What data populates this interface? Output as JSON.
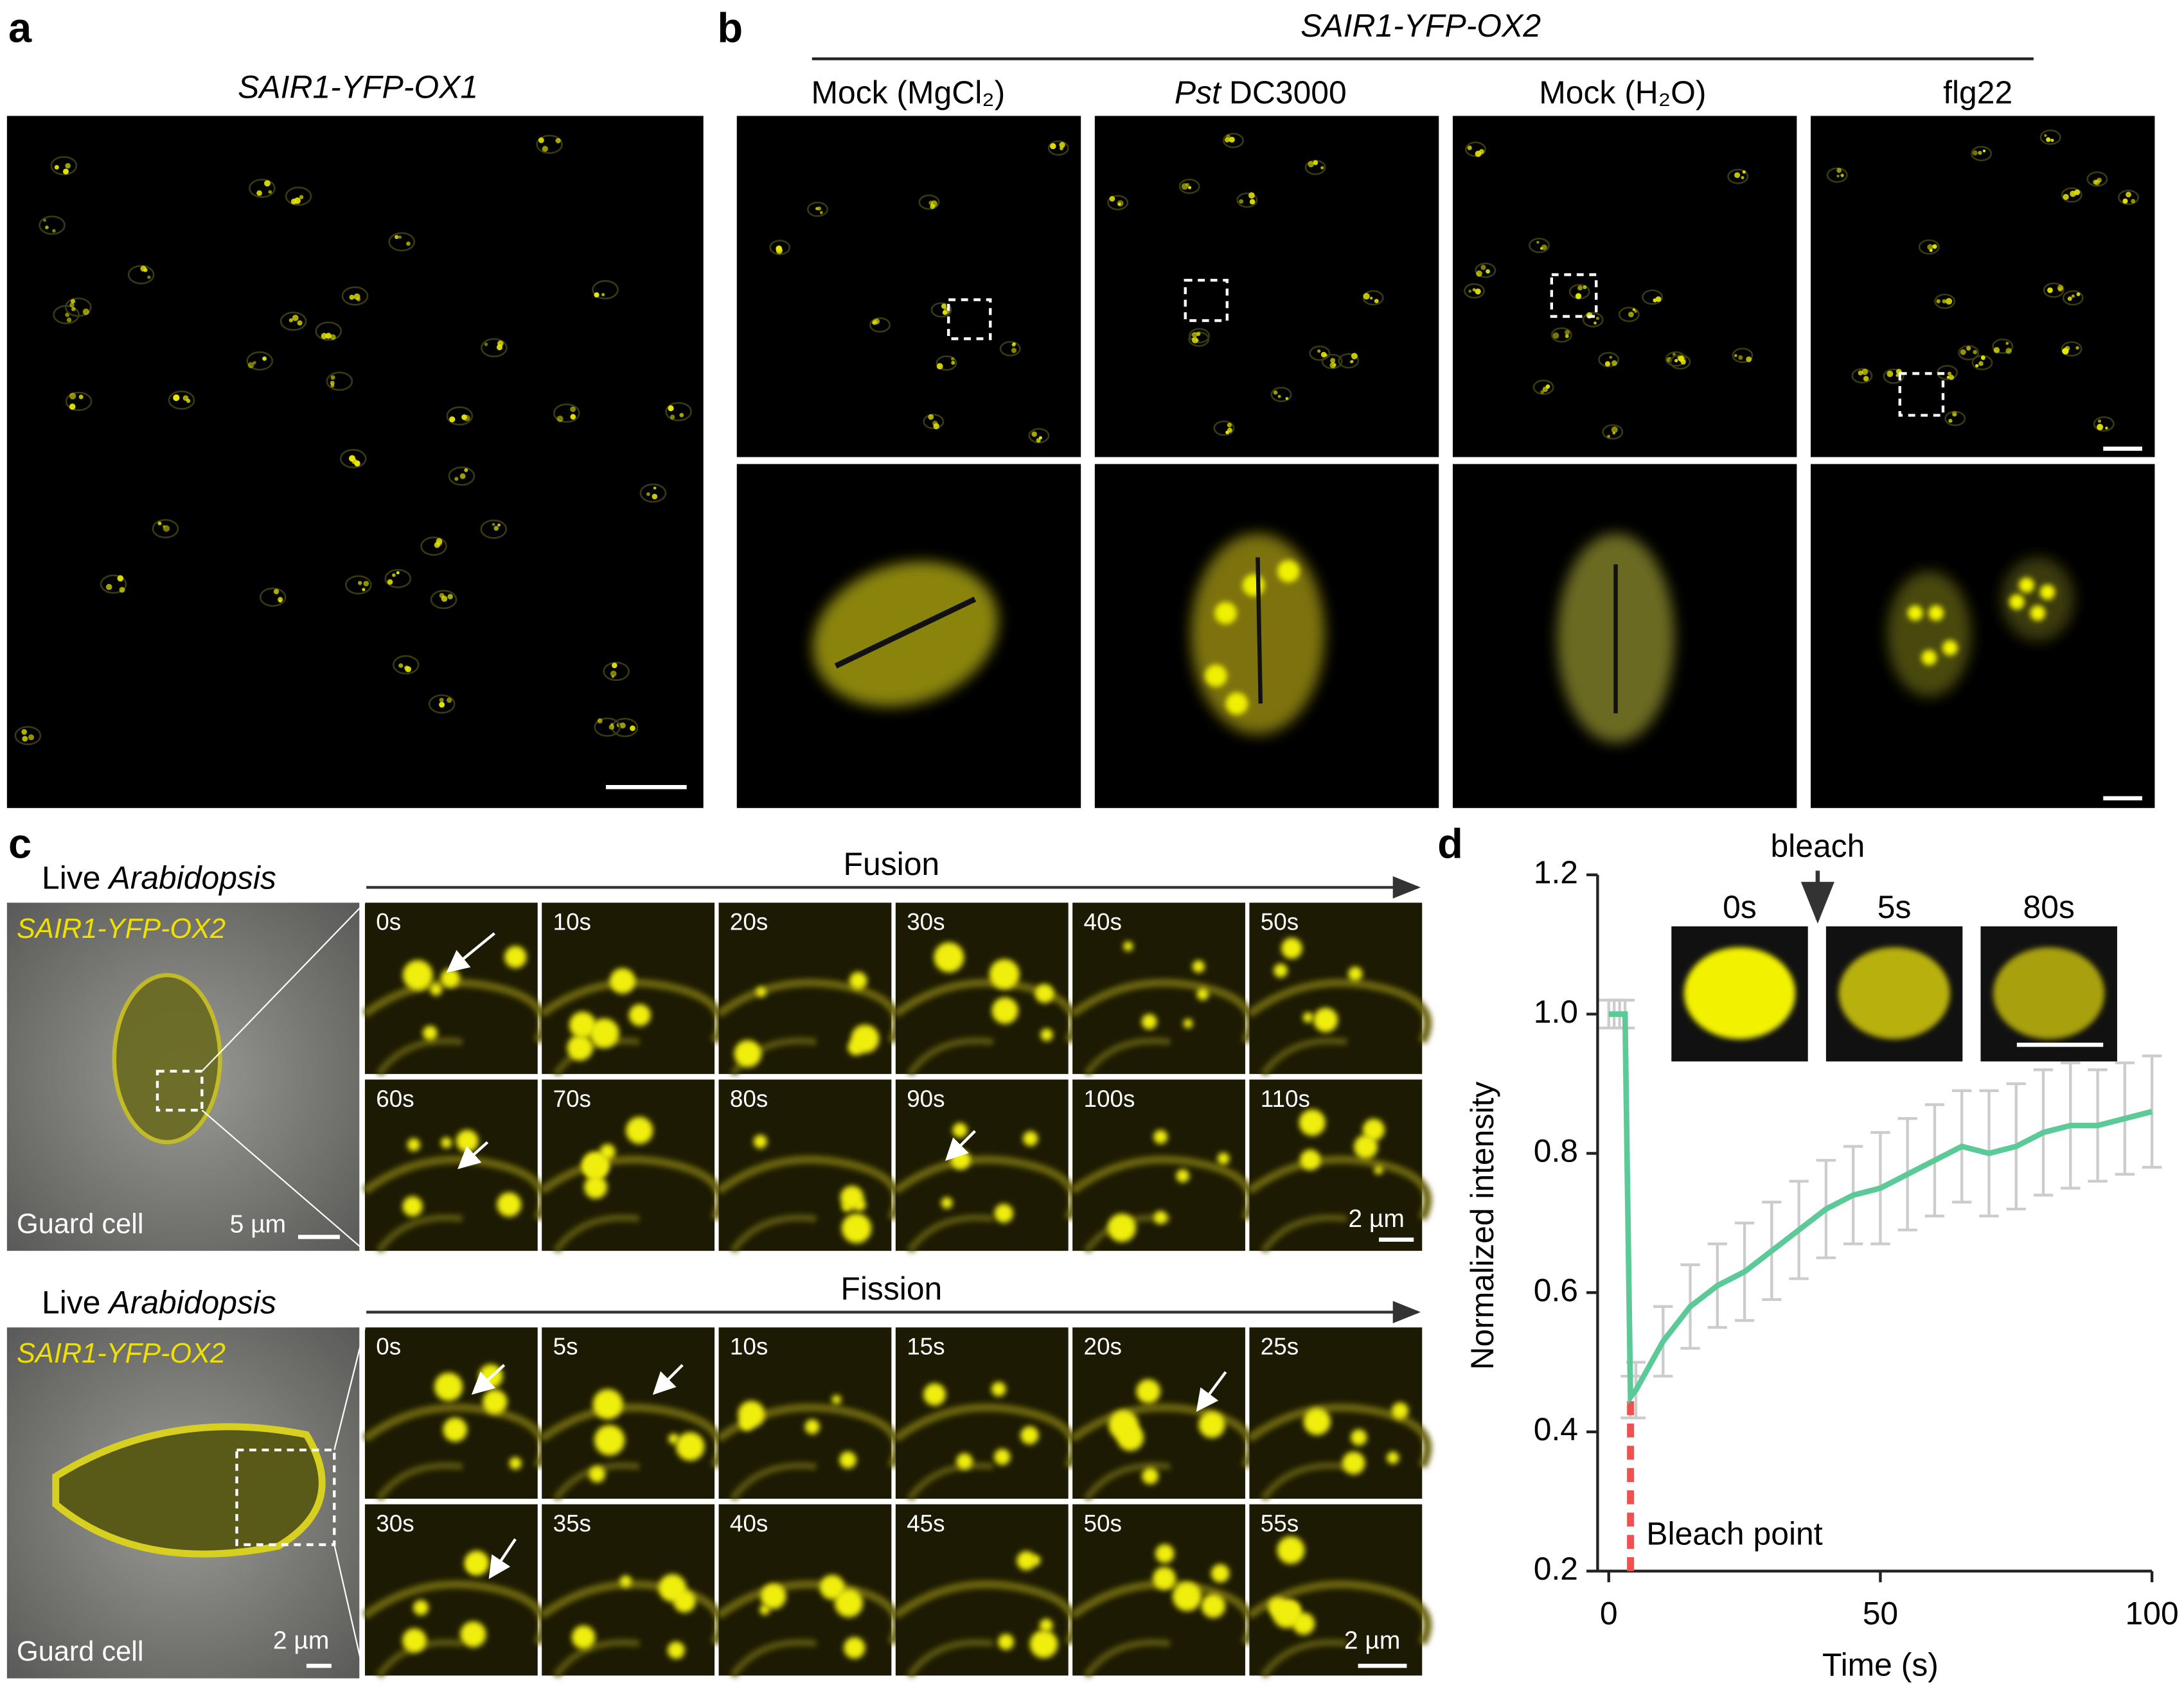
{
  "panels": {
    "a": {
      "label": "a",
      "title": "SAIR1-YFP-OX1"
    },
    "b": {
      "label": "b",
      "title": "SAIR1-YFP-OX2",
      "columns": [
        "Mock (MgCl₂)",
        {
          "italic": "Pst",
          "rest": "DC3000"
        },
        "Mock (H₂O)",
        "flg22"
      ]
    },
    "c": {
      "label": "c",
      "rows": [
        {
          "live": "Live",
          "species": "Arabidopsis",
          "line": "SAIR1-YFP-OX2",
          "cell": "Guard cell",
          "scale": "5 µm",
          "process": "Fusion",
          "times": [
            "0s",
            "10s",
            "20s",
            "30s",
            "40s",
            "50s",
            "60s",
            "70s",
            "80s",
            "90s",
            "100s",
            "110s"
          ],
          "frame_scale": "2 µm"
        },
        {
          "live": "Live",
          "species": "Arabidopsis",
          "line": "SAIR1-YFP-OX2",
          "cell": "Guard cell",
          "scale": "2 µm",
          "process": "Fission",
          "times": [
            "0s",
            "5s",
            "10s",
            "15s",
            "20s",
            "25s",
            "30s",
            "35s",
            "40s",
            "45s",
            "50s",
            "55s"
          ],
          "frame_scale": "2 µm"
        }
      ]
    },
    "d": {
      "label": "d",
      "bleach": "bleach",
      "insets": [
        "0s",
        "5s",
        "80s"
      ]
    }
  },
  "chart_data": {
    "type": "line",
    "x_label": "Time (s)",
    "y_label": "Normalized intensity",
    "annotation": "Bleach point",
    "bleach_point": 4,
    "x": [
      0,
      1,
      2,
      3,
      4,
      5,
      10,
      15,
      20,
      25,
      30,
      35,
      40,
      45,
      50,
      55,
      60,
      65,
      70,
      75,
      80,
      85,
      90,
      95,
      100
    ],
    "values": [
      1,
      1,
      1,
      1,
      0.45,
      0.46,
      0.53,
      0.58,
      0.61,
      0.63,
      0.66,
      0.69,
      0.72,
      0.74,
      0.75,
      0.77,
      0.79,
      0.81,
      0.8,
      0.81,
      0.83,
      0.84,
      0.84,
      0.85,
      0.86
    ],
    "errors": [
      0.02,
      0.02,
      0.02,
      0.02,
      0.03,
      0.04,
      0.05,
      0.06,
      0.06,
      0.07,
      0.07,
      0.07,
      0.07,
      0.07,
      0.08,
      0.08,
      0.08,
      0.08,
      0.09,
      0.09,
      0.09,
      0.09,
      0.08,
      0.08,
      0.08
    ],
    "color": "#5cc998",
    "error_color": "#cccccc",
    "annotation_color": "#f05050",
    "xlim": [
      0,
      100
    ],
    "ylim": [
      0.2,
      1.2
    ],
    "xticks": [
      0,
      50,
      100
    ],
    "yticks": [
      0.2,
      0.4,
      0.6,
      0.8,
      {
        "value": 1,
        "label": "1.0"
      },
      1.2
    ]
  }
}
